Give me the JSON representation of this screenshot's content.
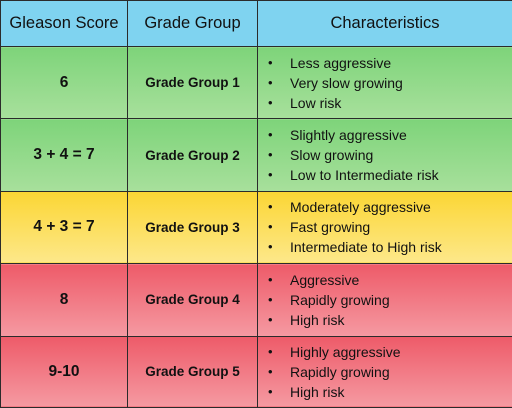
{
  "headers": {
    "score": "Gleason Score",
    "group": "Grade Group",
    "characteristics": "Characteristics"
  },
  "colors": {
    "header": "#7fd3f0",
    "green": "#8fd98a",
    "yellow": "#fcdc50",
    "red": "#f07a85"
  },
  "rows": [
    {
      "score": "6",
      "group": "Grade Group 1",
      "color": "green",
      "characteristics": [
        "Less aggressive",
        "Very slow growing",
        "Low risk"
      ]
    },
    {
      "score": "3 + 4 = 7",
      "group": "Grade Group 2",
      "color": "green",
      "characteristics": [
        "Slightly aggressive",
        "Slow growing",
        "Low to Intermediate risk"
      ]
    },
    {
      "score": "4 + 3 = 7",
      "group": "Grade Group 3",
      "color": "yellow",
      "characteristics": [
        "Moderately aggressive",
        "Fast growing",
        "Intermediate to High risk"
      ]
    },
    {
      "score": "8",
      "group": "Grade Group 4",
      "color": "red",
      "characteristics": [
        "Aggressive",
        "Rapidly growing",
        "High risk"
      ]
    },
    {
      "score": "9-10",
      "group": "Grade Group 5",
      "color": "red",
      "characteristics": [
        "Highly aggressive",
        "Rapidly growing",
        "High risk"
      ]
    }
  ]
}
